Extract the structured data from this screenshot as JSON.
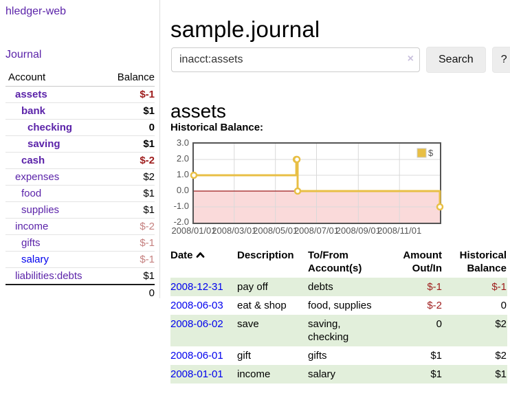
{
  "sidebar": {
    "brand": "hledger-web",
    "journal_label": "Journal",
    "headers": {
      "account": "Account",
      "balance": "Balance"
    },
    "accounts": [
      {
        "name": "assets",
        "balance": "$-1",
        "indent": 1,
        "bold": true,
        "value_style": "neg-strong",
        "link_style": "purple"
      },
      {
        "name": "bank",
        "balance": "$1",
        "indent": 2,
        "bold": true,
        "value_style": "pos",
        "link_style": "purple"
      },
      {
        "name": "checking",
        "balance": "0",
        "indent": 3,
        "bold": true,
        "value_style": "pos",
        "link_style": "purple"
      },
      {
        "name": "saving",
        "balance": "$1",
        "indent": 3,
        "bold": true,
        "value_style": "pos",
        "link_style": "purple"
      },
      {
        "name": "cash",
        "balance": "$-2",
        "indent": 2,
        "bold": true,
        "value_style": "neg-strong",
        "link_style": "purple"
      },
      {
        "name": "expenses",
        "balance": "$2",
        "indent": 1,
        "bold": false,
        "value_style": "pos",
        "link_style": "purple"
      },
      {
        "name": "food",
        "balance": "$1",
        "indent": 2,
        "bold": false,
        "value_style": "pos",
        "link_style": "purple"
      },
      {
        "name": "supplies",
        "balance": "$1",
        "indent": 2,
        "bold": false,
        "value_style": "pos",
        "link_style": "purple"
      },
      {
        "name": "income",
        "balance": "$-2",
        "indent": 1,
        "bold": false,
        "value_style": "neg-soft",
        "link_style": "purple"
      },
      {
        "name": "gifts",
        "balance": "$-1",
        "indent": 2,
        "bold": false,
        "value_style": "neg-soft",
        "link_style": "purple"
      },
      {
        "name": "salary",
        "balance": "$-1",
        "indent": 2,
        "bold": false,
        "value_style": "neg-soft",
        "link_style": "blue"
      },
      {
        "name": "liabilities:debts",
        "balance": "$1",
        "indent": 1,
        "bold": false,
        "value_style": "pos",
        "link_style": "purple"
      }
    ],
    "total": "0"
  },
  "main": {
    "title": "sample.journal",
    "search": {
      "value": "inacct:assets",
      "clear_icon": "×",
      "button_label": "Search",
      "help_label": "?"
    },
    "account_heading": "assets"
  },
  "chart_data": {
    "type": "line",
    "title": "Historical Balance:",
    "step": true,
    "legend": [
      {
        "label": "$",
        "color": "#e8bf45"
      }
    ],
    "legend_position": "top-right",
    "x_range": [
      "2008/01/01",
      "2008/12/31"
    ],
    "ylim": [
      -2,
      3
    ],
    "y_ticks": [
      "3.0",
      "2.0",
      "1.0",
      "0.0",
      "-1.0",
      "-2.0"
    ],
    "x_ticks": [
      "2008/01/01",
      "2008/03/01",
      "2008/05/01",
      "2008/07/01",
      "2008/09/01",
      "2008/11/01"
    ],
    "series": [
      {
        "name": "$",
        "points": [
          [
            "2008/01/01",
            1
          ],
          [
            "2008/06/01",
            2
          ],
          [
            "2008/06/02",
            2
          ],
          [
            "2008/06/03",
            0
          ],
          [
            "2008/12/31",
            -1
          ]
        ]
      }
    ],
    "colors": {
      "line": "#e8bf45",
      "point_fill": "#ffffff",
      "negative_fill": "#fadada",
      "zero_line": "#9c1b1b",
      "grid": "#d9d9d9",
      "border": "#545454",
      "axis_text": "#545454"
    }
  },
  "register": {
    "headers": {
      "date": "Date",
      "description": "Description",
      "accounts": "To/From Account(s)",
      "amount": "Amount Out/In",
      "balance": "Historical Balance"
    },
    "rows": [
      {
        "date": "2008-12-31",
        "description": "pay off",
        "accounts": "debts",
        "amount": "$-1",
        "amount_neg": true,
        "balance": "$-1",
        "balance_neg": true,
        "shaded": true
      },
      {
        "date": "2008-06-03",
        "description": "eat & shop",
        "accounts": "food, supplies",
        "amount": "$-2",
        "amount_neg": true,
        "balance": "0",
        "balance_neg": false,
        "shaded": false
      },
      {
        "date": "2008-06-02",
        "description": "save",
        "accounts": "saving, checking",
        "amount": "0",
        "amount_neg": false,
        "balance": "$2",
        "balance_neg": false,
        "shaded": true
      },
      {
        "date": "2008-06-01",
        "description": "gift",
        "accounts": "gifts",
        "amount": "$1",
        "amount_neg": false,
        "balance": "$2",
        "balance_neg": false,
        "shaded": false
      },
      {
        "date": "2008-01-01",
        "description": "income",
        "accounts": "salary",
        "amount": "$1",
        "amount_neg": false,
        "balance": "$1",
        "balance_neg": false,
        "shaded": true
      }
    ]
  }
}
